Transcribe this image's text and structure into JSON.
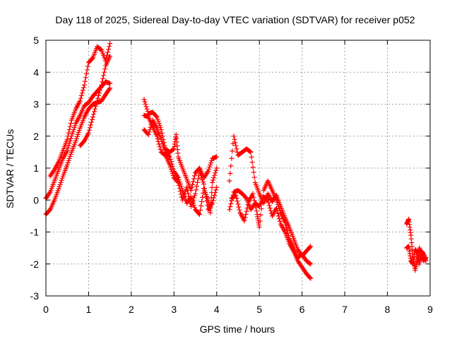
{
  "chart_data": {
    "type": "scatter",
    "title": "Day 118 of 2025, Sidereal Day-to-day VTEC variation (SDTVAR) for receiver p052",
    "xlabel": "GPS time / hours",
    "ylabel": "SDTVAR / TECUs",
    "xlim": [
      0,
      9
    ],
    "ylim": [
      -3,
      5
    ],
    "xticks": [
      "0",
      "1",
      "2",
      "3",
      "4",
      "5",
      "6",
      "7",
      "8",
      "9"
    ],
    "yticks": [
      "-3",
      "-2",
      "-1",
      "0",
      "1",
      "2",
      "3",
      "4",
      "5"
    ],
    "grid": true,
    "marker": "plus",
    "color": "#ff0000",
    "tracks": [
      [
        [
          0.0,
          -0.45
        ],
        [
          0.1,
          -0.3
        ],
        [
          0.2,
          0.0
        ],
        [
          0.3,
          0.35
        ],
        [
          0.4,
          0.75
        ],
        [
          0.5,
          1.1
        ],
        [
          0.6,
          1.5
        ],
        [
          0.7,
          1.85
        ],
        [
          0.8,
          2.25
        ],
        [
          0.9,
          2.6
        ],
        [
          1.0,
          2.85
        ],
        [
          1.1,
          3.0
        ],
        [
          1.2,
          3.05
        ],
        [
          1.3,
          3.1
        ],
        [
          1.4,
          3.3
        ],
        [
          1.5,
          3.5
        ]
      ],
      [
        [
          0.0,
          0.05
        ],
        [
          0.1,
          0.25
        ],
        [
          0.2,
          0.6
        ],
        [
          0.3,
          0.95
        ],
        [
          0.4,
          1.3
        ],
        [
          0.5,
          1.55
        ],
        [
          0.6,
          2.0
        ],
        [
          0.7,
          2.4
        ],
        [
          0.8,
          2.65
        ],
        [
          0.9,
          2.95
        ],
        [
          1.0,
          3.05
        ],
        [
          1.1,
          3.25
        ],
        [
          1.2,
          3.4
        ],
        [
          1.3,
          3.55
        ],
        [
          1.4,
          3.7
        ],
        [
          1.5,
          3.65
        ]
      ],
      [
        [
          0.1,
          0.75
        ],
        [
          0.2,
          0.95
        ],
        [
          0.3,
          1.2
        ],
        [
          0.4,
          1.55
        ],
        [
          0.5,
          1.9
        ],
        [
          0.6,
          2.5
        ],
        [
          0.7,
          2.85
        ],
        [
          0.8,
          3.1
        ],
        [
          0.9,
          3.6
        ],
        [
          1.0,
          4.3
        ],
        [
          1.1,
          4.45
        ],
        [
          1.2,
          4.8
        ],
        [
          1.3,
          4.7
        ],
        [
          1.4,
          4.35
        ],
        [
          1.5,
          4.9
        ]
      ],
      [
        [
          0.8,
          1.7
        ],
        [
          0.9,
          1.85
        ],
        [
          1.0,
          2.1
        ],
        [
          1.1,
          2.6
        ],
        [
          1.2,
          3.1
        ],
        [
          1.3,
          3.6
        ],
        [
          1.4,
          4.2
        ],
        [
          1.5,
          4.5
        ]
      ],
      [
        [
          2.3,
          3.15
        ],
        [
          2.4,
          2.7
        ],
        [
          2.5,
          2.75
        ],
        [
          2.6,
          2.6
        ],
        [
          2.7,
          2.2
        ],
        [
          2.8,
          1.6
        ],
        [
          2.9,
          1.5
        ],
        [
          3.0,
          1.6
        ],
        [
          3.05,
          2.05
        ],
        [
          3.1,
          1.35
        ],
        [
          3.2,
          1.0
        ],
        [
          3.3,
          0.65
        ],
        [
          3.4,
          0.3
        ],
        [
          3.5,
          0.85
        ],
        [
          3.6,
          1.0
        ],
        [
          3.7,
          0.7
        ],
        [
          3.8,
          0.9
        ],
        [
          3.9,
          1.3
        ],
        [
          4.0,
          1.35
        ]
      ],
      [
        [
          2.3,
          2.2
        ],
        [
          2.4,
          2.05
        ],
        [
          2.5,
          2.5
        ],
        [
          2.6,
          2.25
        ],
        [
          2.7,
          1.9
        ],
        [
          2.8,
          1.5
        ],
        [
          2.9,
          1.35
        ],
        [
          3.0,
          0.9
        ],
        [
          3.1,
          0.7
        ],
        [
          3.2,
          0.3
        ],
        [
          3.3,
          -0.1
        ],
        [
          3.4,
          0.1
        ],
        [
          3.5,
          -0.3
        ],
        [
          3.6,
          -0.45
        ],
        [
          3.7,
          0.35
        ],
        [
          3.8,
          0.0
        ],
        [
          3.85,
          -0.4
        ],
        [
          3.9,
          0.55
        ],
        [
          4.0,
          1.0
        ]
      ],
      [
        [
          2.3,
          2.65
        ],
        [
          2.4,
          2.6
        ],
        [
          2.5,
          2.3
        ],
        [
          2.6,
          2.0
        ],
        [
          2.7,
          1.5
        ],
        [
          2.8,
          1.4
        ],
        [
          2.9,
          1.1
        ],
        [
          3.0,
          0.7
        ],
        [
          3.1,
          0.55
        ],
        [
          3.2,
          0.0
        ],
        [
          3.3,
          0.4
        ],
        [
          3.4,
          -0.2
        ],
        [
          3.5,
          0.2
        ],
        [
          3.6,
          0.9
        ],
        [
          3.7,
          0.5
        ],
        [
          3.8,
          -0.3
        ],
        [
          3.9,
          -0.1
        ],
        [
          4.0,
          0.4
        ]
      ],
      [
        [
          4.3,
          0.6
        ],
        [
          4.4,
          2.0
        ],
        [
          4.5,
          1.4
        ],
        [
          4.6,
          1.5
        ],
        [
          4.7,
          1.6
        ],
        [
          4.8,
          1.5
        ],
        [
          4.9,
          0.55
        ],
        [
          5.0,
          0.2
        ],
        [
          5.1,
          -0.1
        ],
        [
          5.2,
          0.2
        ],
        [
          5.3,
          -0.05
        ],
        [
          5.4,
          0.15
        ],
        [
          5.5,
          -0.2
        ],
        [
          5.6,
          -0.55
        ],
        [
          5.7,
          -0.85
        ],
        [
          5.8,
          -1.2
        ],
        [
          5.9,
          -1.55
        ],
        [
          6.0,
          -1.75
        ],
        [
          6.1,
          -1.6
        ],
        [
          6.2,
          -1.45
        ]
      ],
      [
        [
          4.3,
          -0.3
        ],
        [
          4.4,
          0.25
        ],
        [
          4.5,
          0.3
        ],
        [
          4.6,
          0.2
        ],
        [
          4.7,
          0.05
        ],
        [
          4.8,
          -0.3
        ],
        [
          4.9,
          -0.1
        ],
        [
          5.0,
          -0.2
        ],
        [
          5.1,
          0.1
        ],
        [
          5.2,
          0.0
        ],
        [
          5.3,
          -0.5
        ],
        [
          5.4,
          -0.25
        ],
        [
          5.5,
          -0.75
        ],
        [
          5.6,
          -1.0
        ],
        [
          5.7,
          -1.35
        ],
        [
          5.8,
          -1.6
        ],
        [
          5.9,
          -1.9
        ],
        [
          6.0,
          -2.1
        ],
        [
          6.1,
          -2.3
        ],
        [
          6.2,
          -2.45
        ]
      ],
      [
        [
          4.35,
          0.05
        ],
        [
          4.45,
          0.15
        ],
        [
          4.55,
          -0.4
        ],
        [
          4.65,
          -0.65
        ],
        [
          4.75,
          -0.05
        ],
        [
          4.85,
          0.2
        ],
        [
          4.95,
          -0.45
        ],
        [
          5.0,
          -0.85
        ],
        [
          5.1,
          0.3
        ],
        [
          5.2,
          0.6
        ],
        [
          5.3,
          0.3
        ],
        [
          5.4,
          0.0
        ],
        [
          5.5,
          -0.4
        ],
        [
          5.6,
          -0.7
        ],
        [
          5.7,
          -1.2
        ],
        [
          5.8,
          -1.5
        ],
        [
          5.9,
          -1.8
        ],
        [
          6.0,
          -1.7
        ],
        [
          6.1,
          -1.9
        ],
        [
          6.2,
          -2.0
        ]
      ],
      [
        [
          8.45,
          -0.75
        ],
        [
          8.5,
          -0.6
        ],
        [
          8.55,
          -1.1
        ],
        [
          8.6,
          -1.8
        ],
        [
          8.65,
          -2.2
        ],
        [
          8.7,
          -1.85
        ],
        [
          8.75,
          -1.5
        ],
        [
          8.8,
          -1.75
        ],
        [
          8.85,
          -1.9
        ],
        [
          8.9,
          -1.8
        ]
      ],
      [
        [
          8.45,
          -1.5
        ],
        [
          8.5,
          -1.45
        ],
        [
          8.55,
          -1.9
        ],
        [
          8.6,
          -2.0
        ],
        [
          8.65,
          -1.55
        ],
        [
          8.7,
          -1.65
        ],
        [
          8.75,
          -2.0
        ],
        [
          8.8,
          -1.6
        ],
        [
          8.85,
          -1.7
        ],
        [
          8.9,
          -1.9
        ]
      ]
    ]
  }
}
